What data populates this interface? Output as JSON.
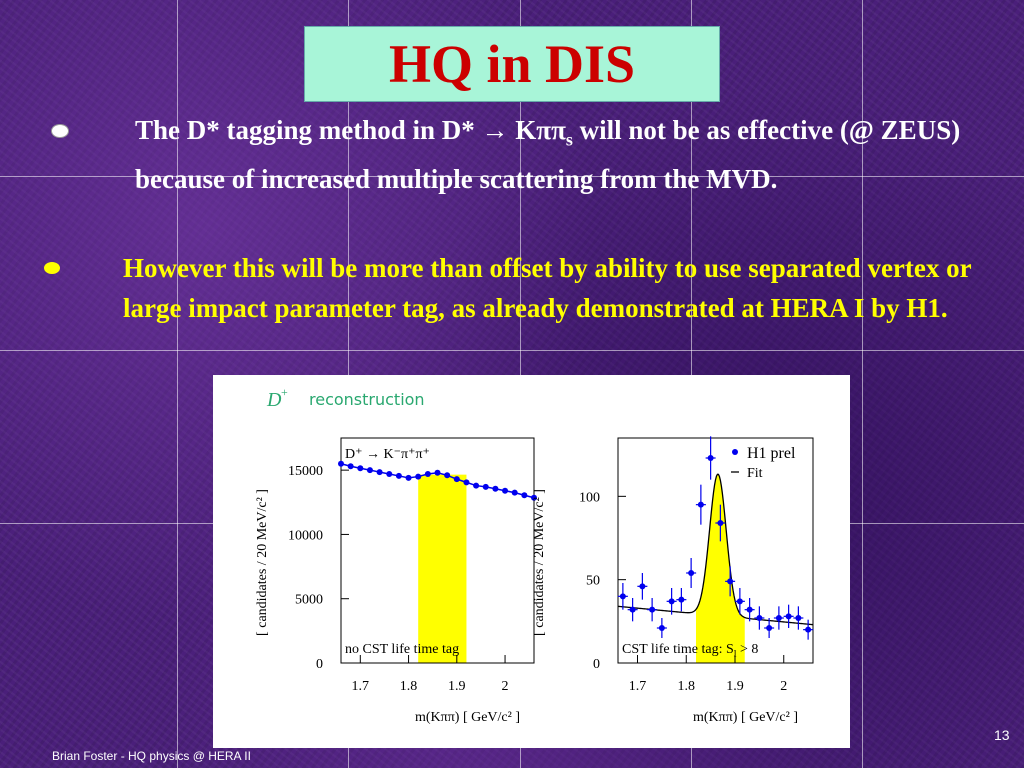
{
  "slide": {
    "title": "HQ in DIS",
    "bullets": [
      {
        "text_pre": "The D* tagging method in D* → Kππ",
        "sub": "s",
        "text_post": " will not be as effective (@ ZEUS) because of increased multiple scattering from the MVD.",
        "color": "#ffffff"
      },
      {
        "text": "However this will be more than offset by ability to use separated vertex or large impact parameter tag, as already demonstrated at HERA I by H1.",
        "color": "#ffff00"
      }
    ],
    "footer": "Brian Foster - HQ physics @ HERA II",
    "page_number": "13"
  },
  "chart_data": [
    {
      "type": "line",
      "heading_math": "D",
      "heading_sup": "+",
      "heading_text": "reconstruction",
      "decay_label": "D⁺ → K⁻π⁺π⁺",
      "annotation": "no CST life time tag",
      "ylabel": "[ candidates / 20 MeV/c² ]",
      "xlabel": "m(Kππ)  [ GeV/c² ]",
      "xlim": [
        1.66,
        2.06
      ],
      "ylim": [
        0,
        17500
      ],
      "xticks": [
        "1.7",
        "1.8",
        "1.9",
        "2"
      ],
      "yticks": [
        "0",
        "5000",
        "10000",
        "15000"
      ],
      "highlight": [
        1.82,
        1.92
      ],
      "highlight_color": "#ffff00",
      "series_color": "#0000ee",
      "x": [
        1.66,
        1.68,
        1.7,
        1.72,
        1.74,
        1.76,
        1.78,
        1.8,
        1.82,
        1.84,
        1.86,
        1.88,
        1.9,
        1.92,
        1.94,
        1.96,
        1.98,
        2.0,
        2.02,
        2.04,
        2.06
      ],
      "y": [
        15500,
        15300,
        15150,
        15000,
        14850,
        14700,
        14550,
        14400,
        14500,
        14700,
        14800,
        14600,
        14300,
        14050,
        13800,
        13700,
        13550,
        13400,
        13250,
        13050,
        12850
      ]
    },
    {
      "type": "scatter",
      "legend": [
        "H1 prel",
        "Fit"
      ],
      "annotation": "CST life time tag:  S",
      "annotation_sub": "l",
      "annotation_post": " > 8",
      "ylabel": "[ candidates / 20 MeV/c² ]",
      "xlabel": "m(Kππ)  [ GeV/c² ]",
      "xlim": [
        1.66,
        2.06
      ],
      "ylim": [
        0,
        135
      ],
      "xticks": [
        "1.7",
        "1.8",
        "1.9",
        "2"
      ],
      "yticks": [
        "0",
        "50",
        "100"
      ],
      "highlight": [
        1.82,
        1.92
      ],
      "highlight_color": "#ffff00",
      "series_color": "#0000ee",
      "x": [
        1.67,
        1.69,
        1.71,
        1.73,
        1.75,
        1.77,
        1.79,
        1.81,
        1.83,
        1.85,
        1.87,
        1.89,
        1.91,
        1.93,
        1.95,
        1.97,
        1.99,
        2.01,
        2.03,
        2.05
      ],
      "y": [
        40,
        32,
        46,
        32,
        21,
        37,
        38,
        54,
        95,
        123,
        84,
        49,
        37,
        32,
        27,
        21,
        27,
        28,
        27,
        20
      ],
      "err": [
        8,
        7,
        8,
        7,
        6,
        8,
        7,
        9,
        12,
        13,
        11,
        9,
        8,
        7,
        7,
        6,
        7,
        7,
        7,
        6
      ],
      "fit_baseline_start": 34,
      "fit_baseline_end": 23,
      "fit_peak": 85,
      "fit_mean": 1.865,
      "fit_sigma": 0.017
    }
  ]
}
